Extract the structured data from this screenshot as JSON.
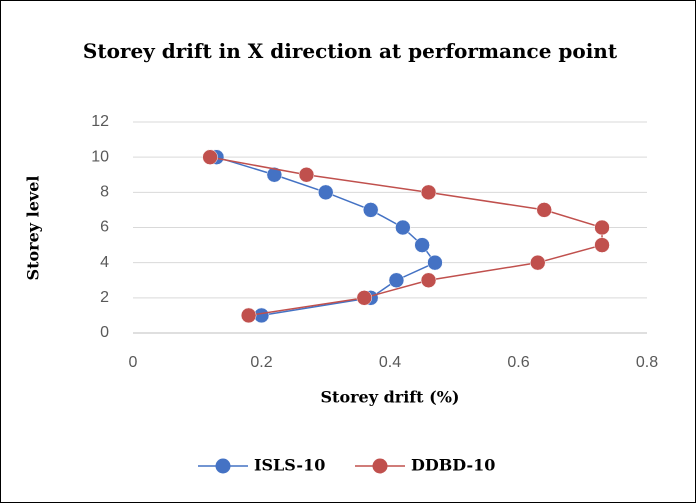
{
  "chart_data": {
    "type": "line",
    "title": "Storey drift in X direction at performance point",
    "x_label": "Storey drift (%)",
    "y_label": "Storey level",
    "xlim": [
      0,
      0.8
    ],
    "xticks": [
      0,
      0.2,
      0.4,
      0.6,
      0.8
    ],
    "ylim": [
      0,
      12
    ],
    "yticks": [
      0,
      2,
      4,
      6,
      8,
      10,
      12
    ],
    "grid": true,
    "legend": "bottom",
    "series": [
      {
        "name": "ISLS-10",
        "color": "#4472c4",
        "x": [
          0.2,
          0.37,
          0.41,
          0.47,
          0.45,
          0.42,
          0.37,
          0.3,
          0.22,
          0.13
        ],
        "values": [
          1,
          2,
          3,
          4,
          5,
          6,
          7,
          8,
          9,
          10
        ]
      },
      {
        "name": "DDBD-10",
        "color": "#c0504d",
        "x": [
          0.18,
          0.36,
          0.46,
          0.63,
          0.73,
          0.73,
          0.64,
          0.46,
          0.27,
          0.12
        ],
        "values": [
          1,
          2,
          3,
          4,
          5,
          6,
          7,
          8,
          9,
          10
        ]
      }
    ]
  }
}
